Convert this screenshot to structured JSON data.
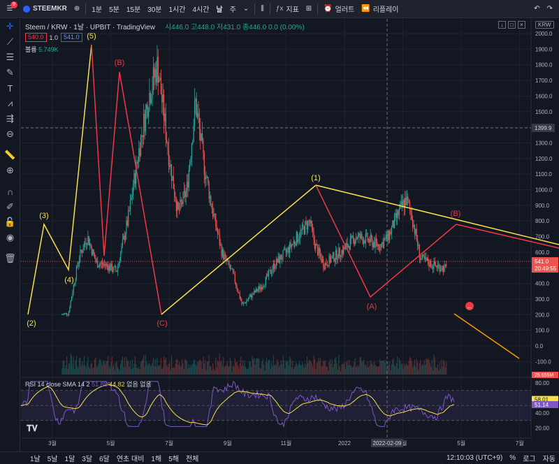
{
  "toolbar": {
    "menu_badge": "9",
    "symbol": "STEEMKR",
    "add_symbol_icon": "plus-circle-icon",
    "timeframes": [
      "1분",
      "5분",
      "15분",
      "30분",
      "1시간",
      "4시간",
      "날",
      "주"
    ],
    "active_timeframe": "날",
    "indicators_label": "지표",
    "alert_label": "얼러트",
    "replay_label": "리플레이"
  },
  "legend": {
    "symbol_line": "Steem / KRW · 1날 · UPBIT · TradingView",
    "ohlc": "시446.0 고448.0 저431.0 종446.0 0.0 (0.00%)",
    "bid": "540.0",
    "spread": "1.0",
    "ask": "541.0",
    "volume_label": "볼륨",
    "volume_value": "5.749K"
  },
  "rsi_legend": {
    "label": "RSI 14 close SMA 14 2",
    "value1": "51.88",
    "value2": "44.82",
    "extra": "없음 없음"
  },
  "price_axis": {
    "currency": "KRW",
    "ticks": [
      "2000.0",
      "1900.0",
      "1800.0",
      "1700.0",
      "1600.0",
      "1500.0",
      "1400.0",
      "1300.0",
      "1200.0",
      "1100.0",
      "1000.0",
      "900.0",
      "800.0",
      "700.0",
      "600.0",
      "500.0",
      "400.0",
      "300.0",
      "200.0",
      "100.0",
      "0.0",
      "-100.0"
    ],
    "crosshair_price": "1399.9",
    "last_price": "541.0",
    "countdown": "20:49:55",
    "volume_tag": "25.655M"
  },
  "rsi_axis": {
    "ticks": [
      "80.00",
      "60.00",
      "40.00",
      "20.00"
    ],
    "tag1": "58.01",
    "tag2": "51.14"
  },
  "time_axis": {
    "ticks": [
      "3월",
      "5월",
      "7월",
      "9월",
      "11월",
      "2022",
      "3월",
      "5월",
      "7월"
    ],
    "crosshair_date": "2022-02-09"
  },
  "wave_labels": {
    "w1": "(1)",
    "w2": "(2)",
    "w3": "(3)",
    "w4": "(4)",
    "w5": "(5)",
    "wa1": "(A)",
    "wb1": "(B)",
    "wc1": "(C)",
    "wa2": "(A)",
    "wb2": "(B)"
  },
  "colors": {
    "bg": "#131722",
    "up": "#26a69a",
    "down": "#ef5350",
    "impulse": "#f7e04a",
    "correction": "#f23645",
    "arrow": "#ff9800",
    "rsi": "#7e57c2"
  },
  "bottombar": {
    "ranges": [
      "1날",
      "5날",
      "1달",
      "3달",
      "6달",
      "연초 대비",
      "1해",
      "5해",
      "전체"
    ],
    "clock": "12:10:03 (UTC+9)",
    "percent": "%",
    "log": "로그",
    "auto": "자동"
  }
}
